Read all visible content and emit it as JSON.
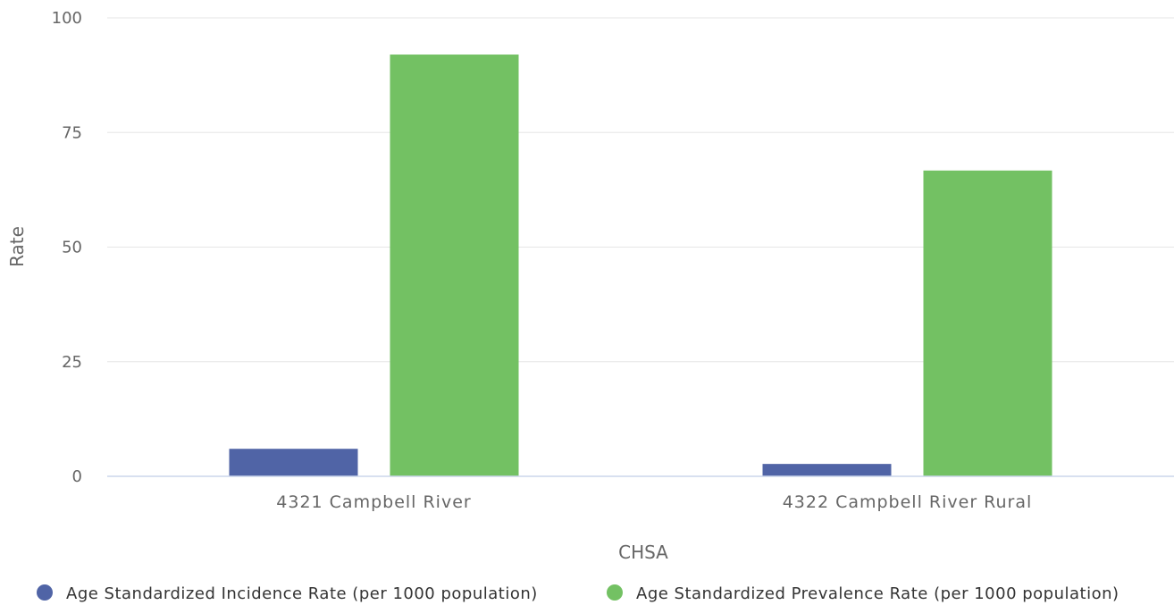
{
  "chart_data": {
    "type": "bar",
    "xlabel": "CHSA",
    "ylabel": "Rate",
    "ylim": [
      0,
      100
    ],
    "yticks": [
      0,
      25,
      50,
      75,
      100
    ],
    "categories": [
      "4321 Campbell River",
      "4322 Campbell River Rural"
    ],
    "series": [
      {
        "name": "Age Standardized Incidence Rate (per 1000 population)",
        "color": "#5064a6",
        "values": [
          6.0,
          2.7
        ]
      },
      {
        "name": "Age Standardized Prevalence Rate (per 1000 population)",
        "color": "#73c163",
        "values": [
          92.0,
          66.7
        ]
      }
    ],
    "grid": true,
    "legend_position": "bottom"
  }
}
